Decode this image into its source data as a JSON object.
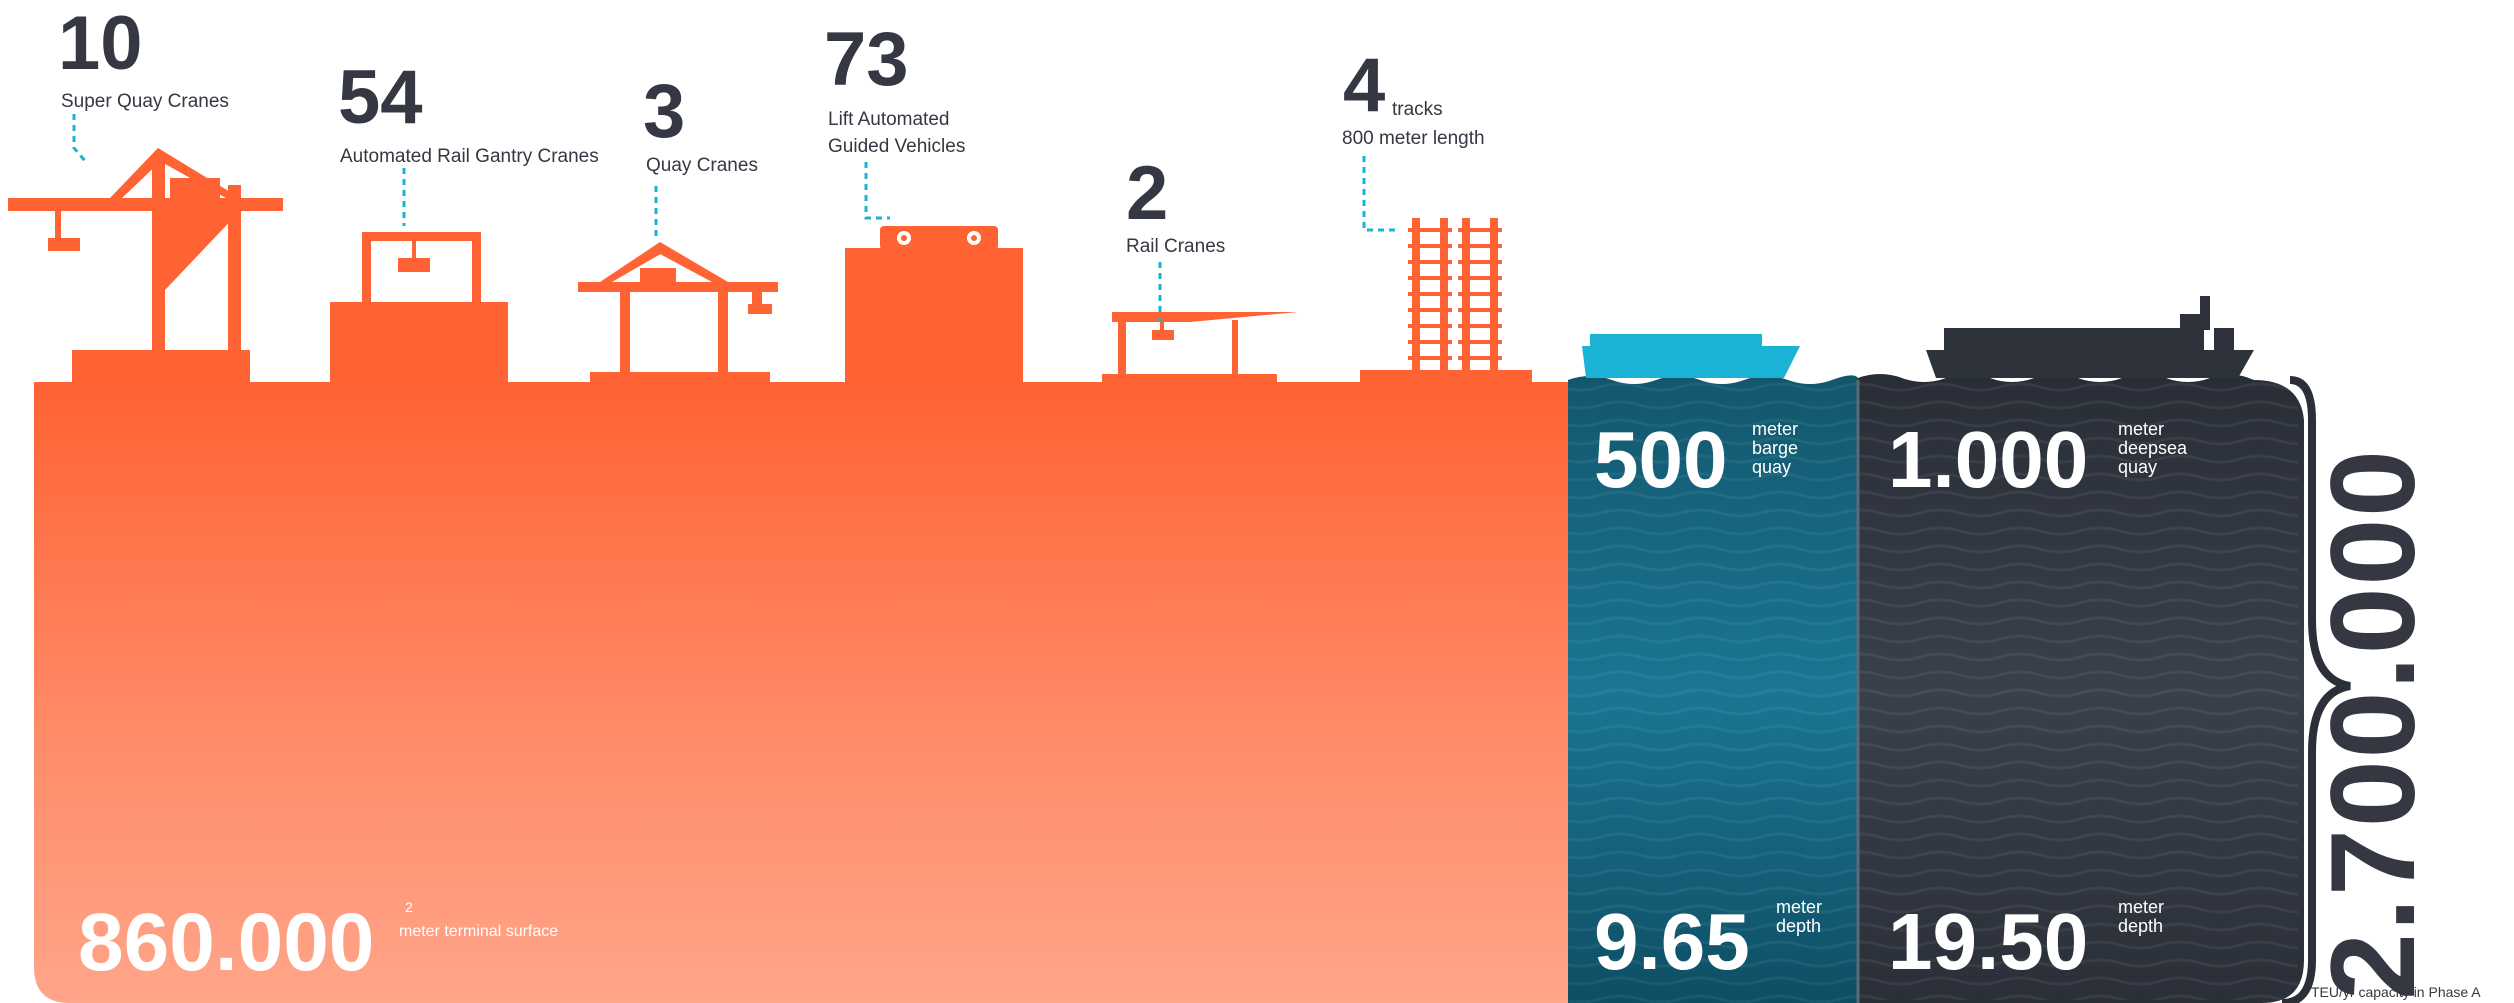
{
  "stats": {
    "super_quay_cranes": {
      "value": "10",
      "label": "Super Quay Cranes"
    },
    "rail_gantry_cranes": {
      "value": "54",
      "label": "Automated Rail Gantry Cranes"
    },
    "quay_cranes": {
      "value": "3",
      "label": "Quay Cranes"
    },
    "lift_agv": {
      "value": "73",
      "label_line1": "Lift Automated",
      "label_line2": "Guided Vehicles"
    },
    "rail_cranes": {
      "value": "2",
      "label": "Rail Cranes"
    },
    "tracks": {
      "value": "4",
      "unit": "tracks",
      "label": "800 meter length"
    }
  },
  "terminal": {
    "value": "860.000",
    "superscript": "2",
    "label": "meter terminal surface"
  },
  "barge": {
    "quay_value": "500",
    "quay_l1": "meter",
    "quay_l2": "barge",
    "quay_l3": "quay",
    "depth_value": "9.65",
    "depth_l1": "meter",
    "depth_l2": "depth"
  },
  "deepsea": {
    "quay_value": "1.000",
    "quay_l1": "meter",
    "quay_l2": "deepsea",
    "quay_l3": "quay",
    "depth_value": "19.50",
    "depth_l1": "meter",
    "depth_l2": "depth"
  },
  "capacity": {
    "value": "2.700.000",
    "caption": "TEU/yr capacity in Phase A"
  },
  "colors": {
    "terminal_orange": "#ff6a3d",
    "barge_water": "#1b6f8a",
    "deepsea_water": "#2f3540",
    "barge_ship": "#1ab3d6",
    "deepsea_ship": "#2e323b",
    "text_dark": "#353842"
  },
  "icons": [
    "super-quay-crane-icon",
    "rail-gantry-crane-icon",
    "quay-crane-icon",
    "agv-icon",
    "rail-crane-icon",
    "tracks-icon",
    "barge-ship-icon",
    "deepsea-ship-icon",
    "brace-icon"
  ]
}
